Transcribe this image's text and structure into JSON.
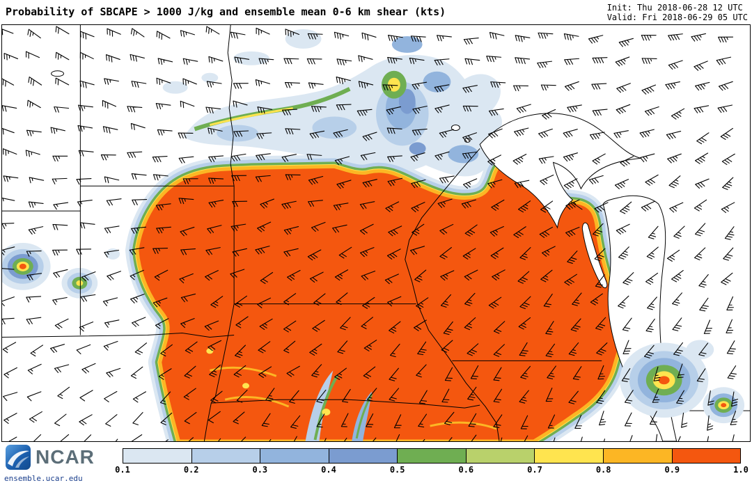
{
  "header": {
    "title": "Probability of SBCAPE > 1000 J/kg and ensemble mean 0-6 km shear (kts)",
    "init": "Init: Thu 2018-06-28 12 UTC",
    "valid": "Valid: Fri 2018-06-29 05 UTC"
  },
  "footer": {
    "logo": "NCAR",
    "url": "ensemble.ucar.edu"
  },
  "chart_data": {
    "type": "heatmap",
    "title": "Probability of SBCAPE > 1000 J/kg and ensemble mean 0-6 km shear (kts)",
    "field": "Probability of SBCAPE > 1000 J/kg",
    "overlay": "ensemble mean 0-6 km shear (kts) wind barbs",
    "init_time": "Thu 2018-06-28 12 UTC",
    "valid_time": "Fri 2018-06-29 05 UTC",
    "colorbar": {
      "labels": [
        "0.1",
        "0.2",
        "0.3",
        "0.4",
        "0.5",
        "0.6",
        "0.7",
        "0.8",
        "0.9",
        "1.0"
      ],
      "colors": [
        "#dbe7f2",
        "#b7cfe9",
        "#92b4dd",
        "#7b9cd0",
        "#6fae52",
        "#b9d16b",
        "#ffe44f",
        "#fcb624",
        "#f4570f"
      ],
      "range": [
        0.1,
        1.0
      ]
    }
  }
}
